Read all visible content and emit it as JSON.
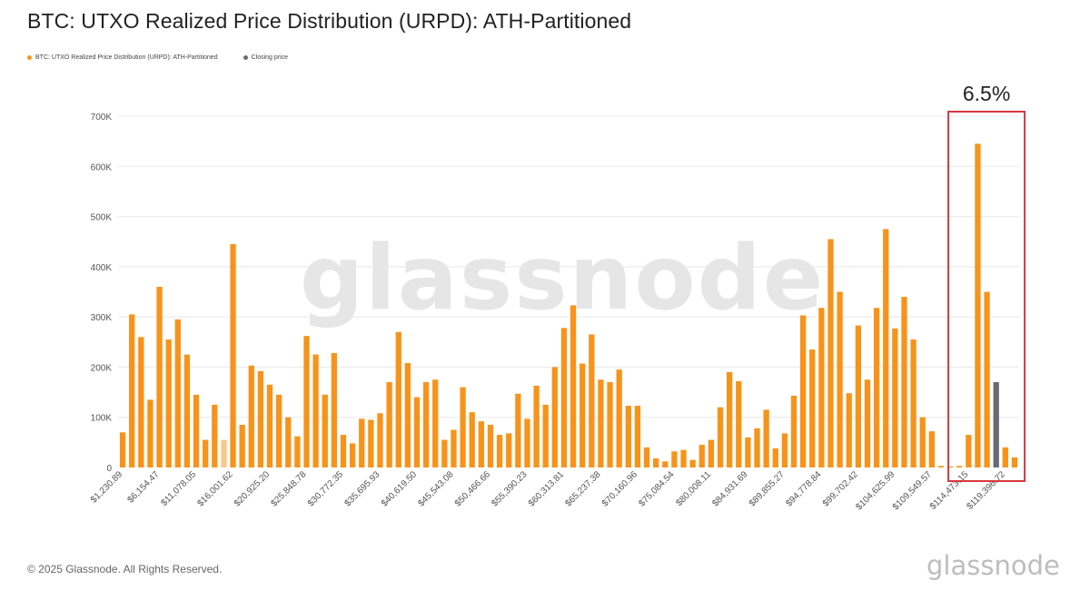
{
  "title": "BTC: UTXO Realized Price Distribution (URPD): ATH-Partitioned",
  "legend": {
    "series_label": "BTC: UTXO Realized Price Distribution (URPD): ATH-Partitioned",
    "closing_label": "Closing price"
  },
  "annotation": {
    "label": "6.5%"
  },
  "footer": "© 2025 Glassnode. All Rights Reserved.",
  "watermark": "glassnode",
  "colors": {
    "bar": "#f7931a",
    "bar_faded": "#f8c88a",
    "closing": "#666b73",
    "highlight_box": "#d9363e",
    "grid": "#e8e8e8"
  },
  "chart_data": {
    "type": "bar",
    "title": "BTC: UTXO Realized Price Distribution (URPD): ATH-Partitioned",
    "xlabel": "",
    "ylabel": "",
    "ylim": [
      0,
      700000
    ],
    "yticks": [
      0,
      100000,
      200000,
      300000,
      400000,
      500000,
      600000,
      700000
    ],
    "ytick_labels": [
      "0",
      "100K",
      "200K",
      "300K",
      "400K",
      "500K",
      "600K",
      "700K"
    ],
    "xtick_labels": [
      "$1,230.89",
      "$6,154.47",
      "$11,078.05",
      "$16,001.62",
      "$20,925.20",
      "$25,848.78",
      "$30,772.35",
      "$35,695.93",
      "$40,619.50",
      "$45,543.08",
      "$50,466.66",
      "$55,390.23",
      "$60,313.81",
      "$65,237.38",
      "$70,160.96",
      "$75,084.54",
      "$80,008.11",
      "$84,931.69",
      "$89,855.27",
      "$94,778.84",
      "$99,702.42",
      "$104,625.99",
      "$109,549.57",
      "$114,473.15",
      "$119,396.72"
    ],
    "bin_width": 1230.8945,
    "bin_start": 1230.89,
    "values": [
      70000,
      305000,
      260000,
      135000,
      360000,
      255000,
      295000,
      225000,
      145000,
      55000,
      125000,
      55000,
      445000,
      85000,
      203000,
      192000,
      165000,
      145000,
      100000,
      62000,
      262000,
      225000,
      145000,
      228000,
      65000,
      48000,
      97000,
      95000,
      108000,
      170000,
      270000,
      208000,
      140000,
      170000,
      175000,
      55000,
      75000,
      160000,
      110000,
      92000,
      85000,
      65000,
      68000,
      147000,
      97000,
      163000,
      125000,
      200000,
      278000,
      323000,
      207000,
      265000,
      175000,
      170000,
      195000,
      123000,
      123000,
      40000,
      18000,
      12000,
      32000,
      35000,
      15000,
      45000,
      55000,
      120000,
      190000,
      172000,
      60000,
      78000,
      115000,
      38000,
      68000,
      143000,
      303000,
      235000,
      318000,
      455000,
      350000,
      148000,
      283000,
      175000,
      318000,
      475000,
      277000,
      340000,
      255000,
      100000,
      72000,
      3000,
      2000,
      3000,
      65000,
      645000,
      350000,
      170000,
      40000,
      20000
    ],
    "faded_bins": [
      11
    ],
    "closing_bin": 95,
    "highlight": {
      "label": "6.5%",
      "from_bin": 90,
      "to_bin": 97
    },
    "series": [
      {
        "name": "BTC: UTXO Realized Price Distribution (URPD): ATH-Partitioned"
      },
      {
        "name": "Closing price"
      }
    ]
  }
}
